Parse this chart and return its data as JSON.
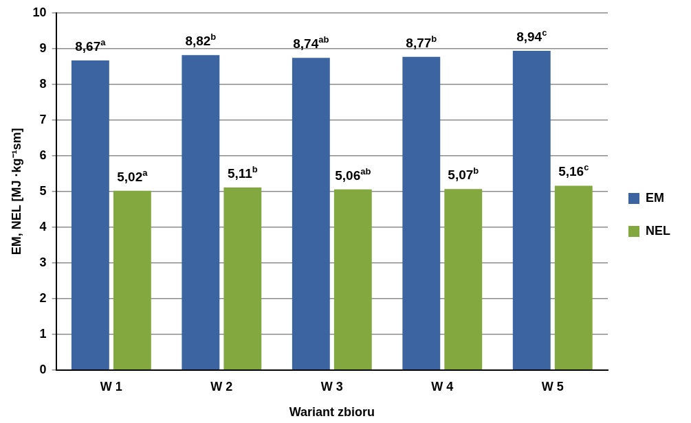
{
  "chart_data": {
    "type": "bar",
    "xlabel": "Wariant zbioru",
    "ylabel": "EM, NEL [MJ ·kg⁻¹sm]",
    "categories": [
      "W 1",
      "W 2",
      "W 3",
      "W 4",
      "W 5"
    ],
    "series": [
      {
        "name": "EM",
        "color": "#3c64a0",
        "values": [
          8.67,
          8.82,
          8.74,
          8.77,
          8.94
        ],
        "value_labels": [
          "8,67$^{a}$",
          "8,82$^{b}$",
          "8,74$^{ab}$",
          "8,77$^{b}$",
          "8,94$^{c}$"
        ]
      },
      {
        "name": "NEL",
        "color": "#84a840",
        "values": [
          5.02,
          5.11,
          5.06,
          5.07,
          5.16
        ],
        "value_labels": [
          "5,02$^{a}$",
          "5,11$^{b}$",
          "5,06$^{ab}$",
          "5,07$^{b}$",
          "5,16$^{c}$"
        ]
      }
    ],
    "ylim": [
      0,
      10
    ],
    "yticks": [
      0,
      1,
      2,
      3,
      4,
      5,
      6,
      7,
      8,
      9,
      10
    ],
    "grid": "y",
    "legend": "right"
  }
}
